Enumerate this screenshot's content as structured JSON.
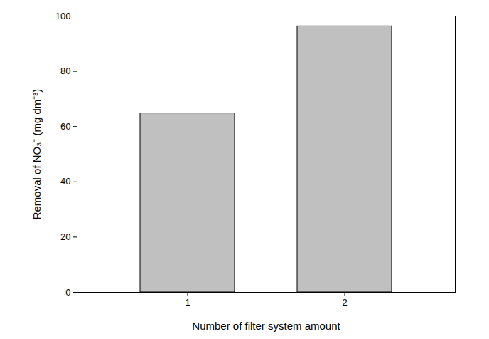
{
  "chart_data": {
    "type": "bar",
    "x_label": "Number of filter system amount",
    "y_label": "Removal of NO₃⁻ (mg dm⁻³)",
    "categories": [
      "1",
      "2"
    ],
    "values": [
      64.8,
      96.3
    ],
    "color": "#c0c0c0",
    "ylim": [
      0,
      100
    ],
    "yticks": [
      0,
      20,
      40,
      60,
      80,
      100
    ],
    "grid": false
  }
}
